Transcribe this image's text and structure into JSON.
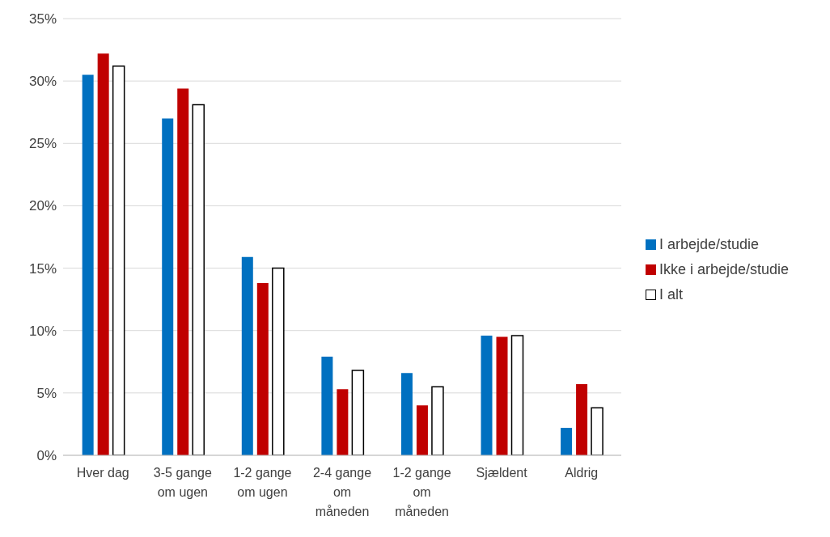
{
  "chart_data": {
    "type": "bar",
    "categories": [
      "Hver dag",
      "3-5 gange om ugen",
      "1-2 gange om ugen",
      "2-4 gange om måneden",
      "1-2 gange om måneden",
      "Sjældent",
      "Aldrig"
    ],
    "series": [
      {
        "name": "I arbejde/studie",
        "color": "#0070c0",
        "values": [
          30.5,
          27.0,
          15.9,
          7.9,
          6.6,
          9.6,
          2.2
        ]
      },
      {
        "name": "Ikke i arbejde/studie",
        "color": "#c00000",
        "values": [
          32.2,
          29.4,
          13.8,
          5.3,
          4.0,
          9.5,
          5.7
        ]
      },
      {
        "name": "I alt",
        "color": "#ffffff",
        "values": [
          31.2,
          28.1,
          15.0,
          6.8,
          5.5,
          9.6,
          3.8
        ]
      }
    ],
    "ylim": [
      0,
      35
    ],
    "yticks": [
      {
        "value": 0,
        "label": "0%"
      },
      {
        "value": 5,
        "label": "5%"
      },
      {
        "value": 10,
        "label": "10%"
      },
      {
        "value": 15,
        "label": "15%"
      },
      {
        "value": 20,
        "label": "20%"
      },
      {
        "value": 25,
        "label": "25%"
      },
      {
        "value": 30,
        "label": "30%"
      },
      {
        "value": 35,
        "label": "35%"
      }
    ],
    "grid": "y",
    "legend": "right"
  }
}
